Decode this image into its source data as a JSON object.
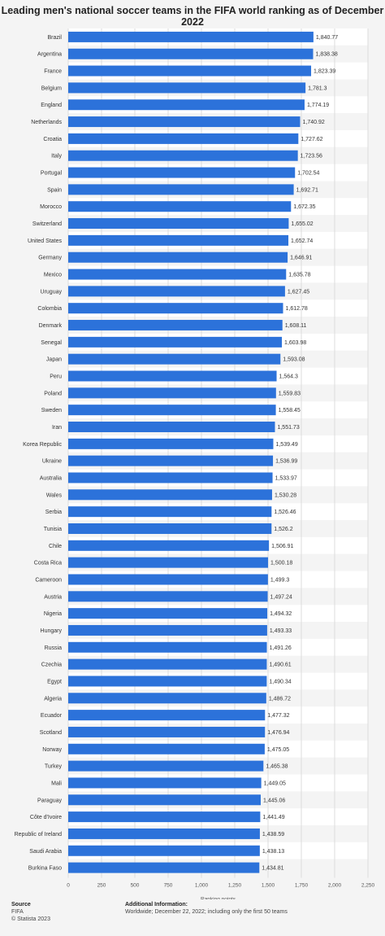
{
  "title": "Leading men's national soccer teams in the FIFA world ranking as of December 2022",
  "chart_data": {
    "type": "bar",
    "orientation": "horizontal",
    "xlabel": "Ranking points",
    "xlim": [
      0,
      2250
    ],
    "xticks": [
      0,
      250,
      500,
      750,
      1000,
      1250,
      1500,
      1750,
      2000,
      2250
    ],
    "xtick_labels": [
      "0",
      "250",
      "500",
      "750",
      "1,000",
      "1,250",
      "1,500",
      "1,750",
      "2,000",
      "2,250"
    ],
    "bar_color": "#2c72da",
    "categories": [
      "Brazil",
      "Argentina",
      "France",
      "Belgium",
      "England",
      "Netherlands",
      "Croatia",
      "Italy",
      "Portugal",
      "Spain",
      "Morocco",
      "Switzerland",
      "United States",
      "Germany",
      "Mexico",
      "Uruguay",
      "Colombia",
      "Denmark",
      "Senegal",
      "Japan",
      "Peru",
      "Poland",
      "Sweden",
      "Iran",
      "Korea Republic",
      "Ukraine",
      "Australia",
      "Wales",
      "Serbia",
      "Tunisia",
      "Chile",
      "Costa Rica",
      "Cameroon",
      "Austria",
      "Nigeria",
      "Hungary",
      "Russia",
      "Czechia",
      "Egypt",
      "Algeria",
      "Ecuador",
      "Scotland",
      "Norway",
      "Turkey",
      "Mali",
      "Paraguay",
      "Côte d'Ivoire",
      "Republic of Ireland",
      "Saudi Arabia",
      "Burkina Faso"
    ],
    "values": [
      1840.77,
      1838.38,
      1823.39,
      1781.3,
      1774.19,
      1740.92,
      1727.62,
      1723.56,
      1702.54,
      1692.71,
      1672.35,
      1655.02,
      1652.74,
      1646.91,
      1635.78,
      1627.45,
      1612.78,
      1608.11,
      1603.98,
      1593.08,
      1564.3,
      1559.83,
      1558.45,
      1551.73,
      1539.49,
      1536.99,
      1533.97,
      1530.28,
      1526.46,
      1526.2,
      1506.91,
      1500.18,
      1499.3,
      1497.24,
      1494.32,
      1493.33,
      1491.26,
      1490.61,
      1490.34,
      1486.72,
      1477.32,
      1476.94,
      1475.05,
      1465.38,
      1449.05,
      1445.06,
      1441.49,
      1438.59,
      1438.13,
      1434.81
    ],
    "value_labels": [
      "1,840.77",
      "1,838.38",
      "1,823.39",
      "1,781.3",
      "1,774.19",
      "1,740.92",
      "1,727.62",
      "1,723.56",
      "1,702.54",
      "1,692.71",
      "1,672.35",
      "1,655.02",
      "1,652.74",
      "1,646.91",
      "1,635.78",
      "1,627.45",
      "1,612.78",
      "1,608.11",
      "1,603.98",
      "1,593.08",
      "1,564.3",
      "1,559.83",
      "1,558.45",
      "1,551.73",
      "1,539.49",
      "1,536.99",
      "1,533.97",
      "1,530.28",
      "1,526.46",
      "1,526.2",
      "1,506.91",
      "1,500.18",
      "1,499.3",
      "1,497.24",
      "1,494.32",
      "1,493.33",
      "1,491.26",
      "1,490.61",
      "1,490.34",
      "1,486.72",
      "1,477.32",
      "1,476.94",
      "1,475.05",
      "1,465.38",
      "1,449.05",
      "1,445.06",
      "1,441.49",
      "1,438.59",
      "1,438.13",
      "1,434.81"
    ]
  },
  "footer": {
    "source_heading": "Source",
    "source_text": "FIFA",
    "copyright": "© Statista 2023",
    "info_heading": "Additional Information:",
    "info_text": "Worldwide; December 22, 2022; including only the first 50 teams"
  }
}
